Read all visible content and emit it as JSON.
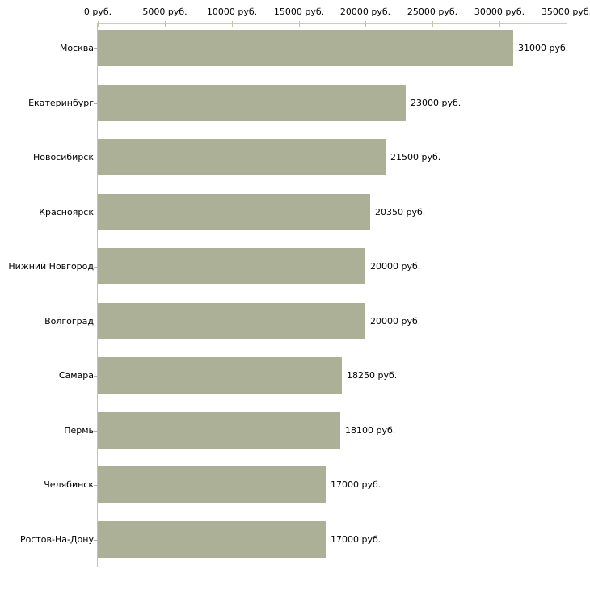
{
  "chart_data": {
    "type": "bar",
    "orientation": "horizontal",
    "title": "",
    "xlabel": "",
    "ylabel": "",
    "xlim": [
      0,
      35000
    ],
    "grid": false,
    "legend": "none",
    "unit": "руб.",
    "categories": [
      "Москва",
      "Екатеринбург",
      "Новосибирск",
      "Красноярск",
      "Нижний Новгород",
      "Волгоград",
      "Самара",
      "Пермь",
      "Челябинск",
      "Ростов-На-Дону"
    ],
    "values": [
      31000,
      23000,
      21500,
      20350,
      20000,
      20000,
      18250,
      18100,
      17000,
      17000
    ],
    "value_labels": [
      "31000 руб.",
      "23000 руб.",
      "21500 руб.",
      "20350 руб.",
      "20000 руб.",
      "20000 руб.",
      "18250 руб.",
      "18100 руб.",
      "17000 руб.",
      "17000 руб."
    ],
    "x_ticks": [
      {
        "value": 0,
        "label": "0 руб."
      },
      {
        "value": 5000,
        "label": "5000 руб."
      },
      {
        "value": 10000,
        "label": "10000 руб."
      },
      {
        "value": 15000,
        "label": "15000 руб."
      },
      {
        "value": 20000,
        "label": "20000 руб."
      },
      {
        "value": 25000,
        "label": "25000 руб."
      },
      {
        "value": 30000,
        "label": "30000 руб."
      },
      {
        "value": 35000,
        "label": "35000 руб."
      }
    ],
    "colors": {
      "bar": "#abb096",
      "x_axis_line": "#cbcbc3",
      "x_tick": "#c3c5a0",
      "y_axis_line": "#c0c0c0",
      "category_tick": "#b3b3a8",
      "text": "#000000",
      "background": "#ffffff"
    }
  }
}
